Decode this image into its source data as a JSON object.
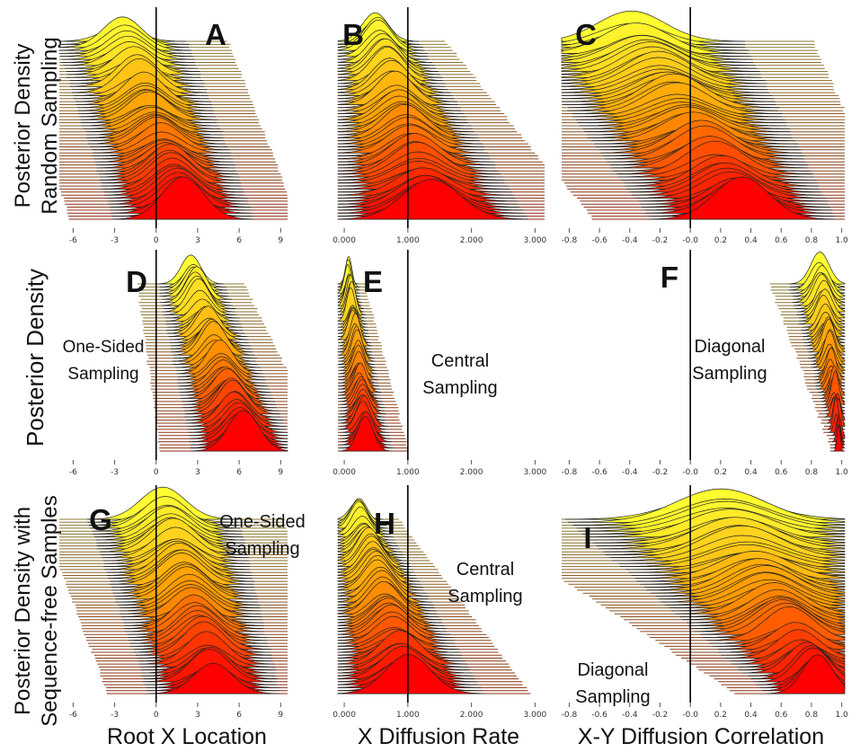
{
  "row_labels": [
    [
      "Posterior Density",
      "Random Sampling"
    ],
    [
      "Posterior Density"
    ],
    [
      "Posterior Density with",
      "Sequence-free Samples"
    ]
  ],
  "x_labels": [
    "Root X Location",
    "X Diffusion Rate",
    "X-Y Diffusion Correlation"
  ],
  "colors": {
    "top": "#ffff33",
    "mid": "#ff9900",
    "bottom": "#ff0000",
    "outline": "#222222",
    "refline": "#000000"
  },
  "axes": [
    {
      "min": -7,
      "max": 9.5,
      "ref": 0,
      "ticks": [
        {
          "v": -6,
          "t": "-6"
        },
        {
          "v": -3,
          "t": "-3"
        },
        {
          "v": 0,
          "t": "0"
        },
        {
          "v": 3,
          "t": "3"
        },
        {
          "v": 6,
          "t": "6"
        },
        {
          "v": 9,
          "t": "9"
        }
      ]
    },
    {
      "min": -0.1,
      "max": 3.15,
      "ref": 1,
      "ticks": [
        {
          "v": 0,
          "t": "0.000"
        },
        {
          "v": 1,
          "t": "1.000"
        },
        {
          "v": 2,
          "t": "2.000"
        },
        {
          "v": 3,
          "t": "3.000"
        }
      ]
    },
    {
      "min": -0.85,
      "max": 1.02,
      "ref": 0,
      "ticks": [
        {
          "v": -0.8,
          "t": "-0.8"
        },
        {
          "v": -0.6,
          "t": "-0.6"
        },
        {
          "v": -0.4,
          "t": "-0.4"
        },
        {
          "v": -0.2,
          "t": "-0.2"
        },
        {
          "v": 0,
          "t": "-0.0"
        },
        {
          "v": 0.2,
          "t": "0.2"
        },
        {
          "v": 0.4,
          "t": "0.4"
        },
        {
          "v": 0.6,
          "t": "0.6"
        },
        {
          "v": 0.8,
          "t": "0.8"
        },
        {
          "v": 1.0,
          "t": "1.0"
        }
      ]
    }
  ],
  "chart_data": [
    {
      "type": "area",
      "panel": "A",
      "axis": 0,
      "ridges": 60,
      "peak_first": -2.5,
      "peak_last": 2.0,
      "sd_first": 1.4,
      "sd_last": 1.5,
      "annotation": ""
    },
    {
      "type": "area",
      "panel": "B",
      "axis": 1,
      "ridges": 60,
      "peak_first": 0.5,
      "peak_last": 1.35,
      "sd_first": 0.2,
      "sd_last": 0.45,
      "annotation": ""
    },
    {
      "type": "area",
      "panel": "C",
      "axis": 2,
      "ridges": 60,
      "peak_first": -0.4,
      "peak_last": 0.35,
      "sd_first": 0.22,
      "sd_last": 0.18,
      "annotation": ""
    },
    {
      "type": "area",
      "panel": "D",
      "axis": 0,
      "ridges": 55,
      "peak_first": 2.5,
      "peak_last": 6.3,
      "sd_first": 0.7,
      "sd_last": 1.1,
      "annotation": "One-Sided Sampling"
    },
    {
      "type": "area",
      "panel": "E",
      "axis": 1,
      "ridges": 55,
      "peak_first": 0.05,
      "peak_last": 0.35,
      "sd_first": 0.05,
      "sd_last": 0.12,
      "annotation": "Central Sampling"
    },
    {
      "type": "area",
      "panel": "F",
      "axis": 2,
      "ridges": 55,
      "peak_first": 0.85,
      "peak_last": 0.99,
      "sd_first": 0.06,
      "sd_last": 0.01,
      "annotation": "Diagonal Sampling"
    },
    {
      "type": "area",
      "panel": "G",
      "axis": 0,
      "ridges": 60,
      "peak_first": 0.5,
      "peak_last": 4.2,
      "sd_first": 1.6,
      "sd_last": 1.4,
      "annotation": "One-Sided Sampling"
    },
    {
      "type": "area",
      "panel": "H",
      "axis": 1,
      "ridges": 60,
      "peak_first": 0.2,
      "peak_last": 1.0,
      "sd_first": 0.12,
      "sd_last": 0.35,
      "annotation": "Central Sampling"
    },
    {
      "type": "area",
      "panel": "I",
      "axis": 2,
      "ridges": 60,
      "peak_first": 0.2,
      "peak_last": 0.85,
      "sd_first": 0.3,
      "sd_last": 0.1,
      "annotation": "Diagonal Sampling"
    }
  ]
}
